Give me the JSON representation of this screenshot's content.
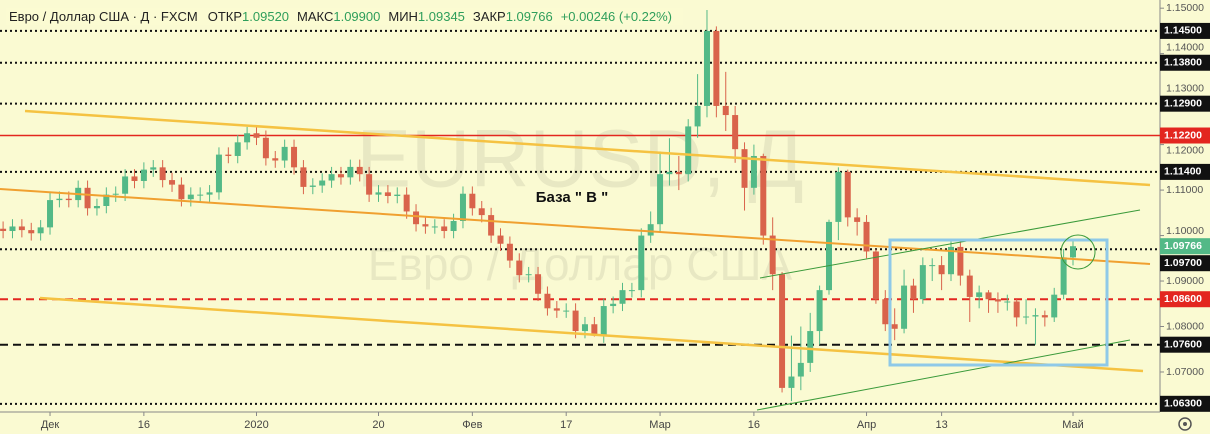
{
  "header": {
    "symbol": "Евро / Доллар США · Д · FXCM",
    "ohlc": [
      {
        "label": "ОТКР",
        "value": "1.09520"
      },
      {
        "label": "МАКС",
        "value": "1.09900"
      },
      {
        "label": "МИН",
        "value": "1.09345"
      },
      {
        "label": "ЗАКР",
        "value": "1.09766"
      }
    ],
    "change": "+0.00246 (+0.22%)"
  },
  "chart_data": {
    "type": "candlestick",
    "watermark": [
      "EURUSD, Д",
      "Евро / Доллар США"
    ],
    "annotation": "База \" В \"",
    "open": [
      1.1015,
      1.101,
      1.102,
      1.1012,
      1.1005,
      1.1018,
      1.1078,
      1.1081,
      1.1078,
      1.1105,
      1.106,
      1.1065,
      1.109,
      1.1092,
      1.113,
      1.112,
      1.1145,
      1.115,
      1.1122,
      1.1112,
      1.108,
      1.109,
      1.109,
      1.1095,
      1.1178,
      1.1175,
      1.1205,
      1.1225,
      1.1215,
      1.117,
      1.1165,
      1.1195,
      1.115,
      1.1107,
      1.111,
      1.1121,
      1.1135,
      1.1128,
      1.1151,
      1.1135,
      1.109,
      1.1095,
      1.1087,
      1.109,
      1.1053,
      1.1025,
      1.102,
      1.102,
      1.101,
      1.1032,
      1.1092,
      1.106,
      1.1045,
      1.1,
      1.0982,
      1.0945,
      1.0913,
      1.0915,
      1.0872,
      1.084,
      1.0835,
      1.0835,
      1.079,
      1.0805,
      1.078,
      1.0845,
      1.085,
      1.088,
      1.088,
      1.1,
      1.1025,
      1.1135,
      1.114,
      1.1135,
      1.124,
      1.1285,
      1.145,
      1.1285,
      1.1265,
      1.119,
      1.1105,
      1.1175,
      1.1,
      1.0915,
      1.0665,
      1.069,
      1.072,
      1.079,
      1.088,
      1.103,
      1.114,
      1.104,
      1.103,
      1.0965,
      1.086,
      1.0805,
      1.0795,
      1.089,
      1.086,
      1.0935,
      1.0935,
      1.0915,
      1.0975,
      1.0912,
      1.0865,
      1.0875,
      1.086,
      1.0855,
      1.0855,
      1.082,
      1.0822,
      1.0825,
      1.082,
      1.087,
      1.0952
    ],
    "high": [
      1.1031,
      1.1036,
      1.1036,
      1.1028,
      1.1034,
      1.1094,
      1.1097,
      1.1097,
      1.1121,
      1.1121,
      1.1081,
      1.1106,
      1.1108,
      1.1146,
      1.1146,
      1.1161,
      1.1166,
      1.1166,
      1.1138,
      1.1128,
      1.1106,
      1.1106,
      1.1111,
      1.1194,
      1.1194,
      1.1221,
      1.1239,
      1.1241,
      1.1231,
      1.1186,
      1.1211,
      1.1211,
      1.1166,
      1.1126,
      1.1137,
      1.1151,
      1.1151,
      1.1167,
      1.1167,
      1.1151,
      1.1111,
      1.1111,
      1.1106,
      1.1106,
      1.1069,
      1.1041,
      1.1036,
      1.1036,
      1.1048,
      1.1108,
      1.1108,
      1.1076,
      1.1061,
      1.1016,
      1.0998,
      1.0961,
      1.0931,
      1.0931,
      1.0888,
      1.0856,
      1.0851,
      1.0851,
      1.0821,
      1.0821,
      1.0861,
      1.0866,
      1.0896,
      1.0896,
      1.1016,
      1.1053,
      1.1185,
      1.1214,
      1.1175,
      1.1256,
      1.1355,
      1.1496,
      1.146,
      1.136,
      1.1285,
      1.1205,
      1.12,
      1.118,
      1.104,
      1.092,
      1.078,
      1.08,
      1.083,
      1.089,
      1.1035,
      1.115,
      1.1145,
      1.106,
      1.1045,
      1.097,
      1.088,
      1.084,
      1.0925,
      1.0905,
      1.0952,
      1.095,
      1.0955,
      1.099,
      1.099,
      1.0925,
      1.089,
      1.088,
      1.0875,
      1.087,
      1.086,
      1.086,
      1.084,
      1.0835,
      1.0885,
      1.097,
      1.099
    ],
    "low": [
      1.0994,
      1.0994,
      1.0996,
      1.0989,
      1.0989,
      1.1002,
      1.1062,
      1.1062,
      1.1062,
      1.1044,
      1.1044,
      1.1049,
      1.1074,
      1.1076,
      1.1104,
      1.1104,
      1.1129,
      1.1106,
      1.1096,
      1.1064,
      1.1064,
      1.1074,
      1.1074,
      1.1079,
      1.1159,
      1.1159,
      1.1189,
      1.1199,
      1.1154,
      1.1149,
      1.1149,
      1.1134,
      1.1091,
      1.1091,
      1.1094,
      1.1105,
      1.1112,
      1.1112,
      1.1119,
      1.1074,
      1.1074,
      1.1071,
      1.1071,
      1.1037,
      1.1009,
      1.1004,
      1.1004,
      1.0994,
      1.0994,
      1.1016,
      1.1044,
      1.1029,
      1.0984,
      1.0966,
      1.0929,
      1.0897,
      1.0897,
      1.0856,
      1.0824,
      1.0819,
      1.0819,
      1.0774,
      1.0774,
      1.0778,
      1.0764,
      1.0829,
      1.0834,
      1.0864,
      1.0864,
      1.0984,
      1.1009,
      1.111,
      1.11,
      1.1119,
      1.1215,
      1.126,
      1.126,
      1.123,
      1.116,
      1.1055,
      1.109,
      1.098,
      1.088,
      1.0655,
      1.0636,
      1.066,
      1.07,
      1.076,
      1.087,
      1.099,
      1.102,
      1.1,
      1.095,
      1.085,
      1.079,
      1.077,
      1.0785,
      1.083,
      1.085,
      1.09,
      1.088,
      1.09,
      1.089,
      1.081,
      1.084,
      1.083,
      1.083,
      1.0835,
      1.08,
      1.0805,
      1.076,
      1.08,
      1.081,
      1.086,
      1.09345
    ],
    "close": [
      1.101,
      1.102,
      1.1012,
      1.1005,
      1.1018,
      1.1078,
      1.1081,
      1.1078,
      1.1105,
      1.106,
      1.1065,
      1.109,
      1.1092,
      1.113,
      1.112,
      1.1145,
      1.115,
      1.1122,
      1.1112,
      1.108,
      1.109,
      1.109,
      1.1095,
      1.1178,
      1.1175,
      1.1205,
      1.1225,
      1.1215,
      1.117,
      1.1165,
      1.1195,
      1.115,
      1.1107,
      1.111,
      1.1121,
      1.1135,
      1.1128,
      1.1151,
      1.1135,
      1.109,
      1.1095,
      1.1087,
      1.109,
      1.1053,
      1.1025,
      1.102,
      1.102,
      1.101,
      1.1032,
      1.1092,
      1.106,
      1.1045,
      1.1,
      1.0982,
      1.0945,
      1.0913,
      1.0915,
      1.0872,
      1.084,
      1.0835,
      1.0835,
      1.079,
      1.0805,
      1.078,
      1.0845,
      1.085,
      1.088,
      1.088,
      1.1,
      1.1025,
      1.1135,
      1.114,
      1.1135,
      1.124,
      1.1285,
      1.145,
      1.1285,
      1.1265,
      1.119,
      1.1105,
      1.1175,
      1.1,
      1.0915,
      1.0665,
      1.069,
      1.072,
      1.079,
      1.088,
      1.103,
      1.114,
      1.104,
      1.103,
      1.0965,
      1.086,
      1.0805,
      1.0795,
      1.089,
      1.086,
      1.0935,
      1.0935,
      1.0915,
      1.0975,
      1.0912,
      1.0865,
      1.0875,
      1.086,
      1.0855,
      1.0855,
      1.082,
      1.0822,
      1.0825,
      1.082,
      1.087,
      1.0952,
      1.09766
    ],
    "colors": {
      "up": "#53b987",
      "down": "#d9634b"
    },
    "xlim": [
      -0.33,
      123.27
    ],
    "xticks": [
      {
        "value": 5,
        "label": "Дек"
      },
      {
        "value": 15,
        "label": "16"
      },
      {
        "value": 27,
        "label": "2020"
      },
      {
        "value": 40,
        "label": "20"
      },
      {
        "value": 50,
        "label": "Фев"
      },
      {
        "value": 60,
        "label": "17"
      },
      {
        "value": 70,
        "label": "Мар"
      },
      {
        "value": 80,
        "label": "16"
      },
      {
        "value": 92,
        "label": "Апр"
      },
      {
        "value": 100,
        "label": "13"
      },
      {
        "value": 114,
        "label": "Май"
      }
    ],
    "ylim": [
      1.0612,
      1.1518
    ],
    "yticks": [
      {
        "value": 1.15,
        "label": "1.15000"
      },
      {
        "value": 1.14,
        "label": "1.14000"
      },
      {
        "value": 1.13,
        "label": "1.13000"
      },
      {
        "value": 1.12,
        "label": "1.12000"
      },
      {
        "value": 1.11,
        "label": "1.11000"
      },
      {
        "value": 1.1,
        "label": "1.10000"
      },
      {
        "value": 1.09,
        "label": "1.09000"
      },
      {
        "value": 1.08,
        "label": "1.08000"
      },
      {
        "value": 1.07,
        "label": "1.07000"
      }
    ],
    "last_price": {
      "value": 1.09766,
      "label": "1.09766",
      "color": "#53b987"
    },
    "levels": [
      {
        "value": 1.145,
        "label": "1.14500",
        "color": "#111111",
        "style": "dotted"
      },
      {
        "value": 1.138,
        "label": "1.13800",
        "color": "#111111",
        "style": "dotted"
      },
      {
        "value": 1.129,
        "label": "1.12900",
        "color": "#111111",
        "style": "dotted"
      },
      {
        "value": 1.122,
        "label": "1.12200",
        "color": "#e3261f",
        "style": "solid"
      },
      {
        "value": 1.114,
        "label": "1.11400",
        "color": "#111111",
        "style": "dotted"
      },
      {
        "value": 1.097,
        "label": "1.09700",
        "color": "#111111",
        "style": "dotted"
      },
      {
        "value": 1.086,
        "label": "1.08600",
        "color": "#e3261f",
        "style": "dashed"
      },
      {
        "value": 1.076,
        "label": "1.07600",
        "color": "#111111",
        "style": "dashed"
      },
      {
        "value": 1.063,
        "label": "1.06300",
        "color": "#111111",
        "style": "dotted"
      }
    ]
  }
}
